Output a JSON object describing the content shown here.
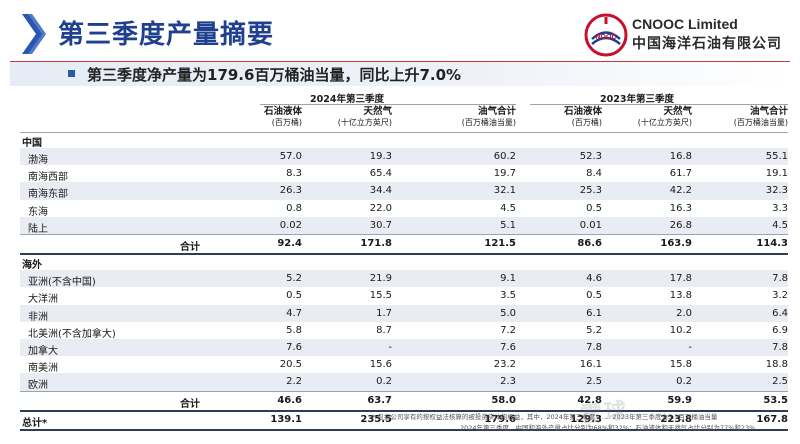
{
  "header": {
    "title": "第三季度产量摘要",
    "company_en": "CNOOC Limited",
    "company_cn": "中国海洋石油有限公司"
  },
  "subtitle": "第三季度净产量为179.6百万桶油当量，同比上升7.0%",
  "table": {
    "period_2024": "2024年第三季度",
    "period_2023": "2023年第三季度",
    "columns": [
      {
        "name": "石油液体",
        "unit": "(百万桶)"
      },
      {
        "name": "天然气",
        "unit": "(十亿立方英尺)"
      },
      {
        "name": "油气合计",
        "unit": "(百万桶油当量)"
      },
      {
        "name": "石油液体",
        "unit": "(百万桶)"
      },
      {
        "name": "天然气",
        "unit": "(十亿立方英尺)"
      },
      {
        "name": "油气合计",
        "unit": "(百万桶油当量)"
      }
    ],
    "china_label": "中国",
    "china_rows": [
      {
        "name": "渤海",
        "values": [
          "57.0",
          "19.3",
          "60.2",
          "52.3",
          "16.8",
          "55.1"
        ]
      },
      {
        "name": "南海西部",
        "values": [
          "8.3",
          "65.4",
          "19.7",
          "8.4",
          "61.7",
          "19.1"
        ]
      },
      {
        "name": "南海东部",
        "values": [
          "26.3",
          "34.4",
          "32.1",
          "25.3",
          "42.2",
          "32.3"
        ]
      },
      {
        "name": "东海",
        "values": [
          "0.8",
          "22.0",
          "4.5",
          "0.5",
          "16.3",
          "3.3"
        ]
      },
      {
        "name": "陆上",
        "values": [
          "0.02",
          "30.7",
          "5.1",
          "0.01",
          "26.8",
          "4.5"
        ]
      }
    ],
    "china_subtotal": {
      "label": "合计",
      "values": [
        "92.4",
        "171.8",
        "121.5",
        "86.6",
        "163.9",
        "114.3"
      ]
    },
    "overseas_label": "海外",
    "overseas_rows": [
      {
        "name": "亚洲(不含中国)",
        "values": [
          "5.2",
          "21.9",
          "9.1",
          "4.6",
          "17.8",
          "7.8"
        ]
      },
      {
        "name": "大洋洲",
        "values": [
          "0.5",
          "15.5",
          "3.5",
          "0.5",
          "13.8",
          "3.2"
        ]
      },
      {
        "name": "非洲",
        "values": [
          "4.7",
          "1.7",
          "5.0",
          "6.1",
          "2.0",
          "6.4"
        ]
      },
      {
        "name": "北美洲(不含加拿大)",
        "values": [
          "5.8",
          "8.7",
          "7.2",
          "5.2",
          "10.2",
          "6.9"
        ]
      },
      {
        "name": "加拿大",
        "values": [
          "7.6",
          "-",
          "7.6",
          "7.8",
          "-",
          "7.8"
        ]
      },
      {
        "name": "南美洲",
        "values": [
          "20.5",
          "15.6",
          "23.2",
          "16.1",
          "15.8",
          "18.8"
        ]
      },
      {
        "name": "欧洲",
        "values": [
          "2.2",
          "0.2",
          "2.3",
          "2.5",
          "0.2",
          "2.5"
        ]
      }
    ],
    "overseas_subtotal": {
      "label": "合计",
      "values": [
        "46.6",
        "63.7",
        "58.0",
        "42.8",
        "59.9",
        "53.5"
      ]
    },
    "total": {
      "label": "总计*",
      "values": [
        "139.1",
        "235.5",
        "179.6",
        "129.3",
        "223.8",
        "167.8"
      ]
    }
  },
  "footnote": {
    "line1": "* 包括公司享有的按权益法核算的被投资实体的权益，其中，2024年第三季度 …… 2023年第三季度为5.3百万桶油当量",
    "line2": "2024年第三季度，中国和海外产量占比分别为68%和32%；石油液体和天然气占比分别为77%和23%"
  },
  "watermark": "雪球"
}
